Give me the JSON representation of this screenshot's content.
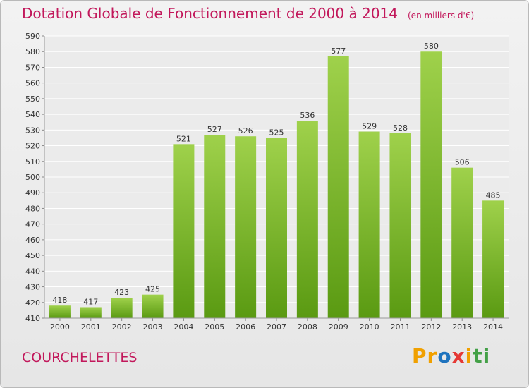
{
  "header": {
    "title": "Dotation Globale de Fonctionnement de 2000 à 2014",
    "unit": "(en milliers d'€)"
  },
  "footer": {
    "commune": "COURCHELETTES",
    "logo_letters": [
      "P",
      "r",
      "o",
      "x",
      "i",
      "t",
      "i"
    ]
  },
  "colors": {
    "title": "#c2185b",
    "bar_top": "#9fd14b",
    "bar_bottom": "#5a9a12",
    "logo": [
      "#f0a000",
      "#f0a000",
      "#1e73be",
      "#e53935",
      "#f0a000",
      "#43a047",
      "#43a047"
    ]
  },
  "chart_data": {
    "type": "bar",
    "title": "Dotation Globale de Fonctionnement de 2000 à 2014",
    "subtitle": "(en milliers d'€)",
    "xlabel": "",
    "ylabel": "",
    "categories": [
      "2000",
      "2001",
      "2002",
      "2003",
      "2004",
      "2005",
      "2006",
      "2007",
      "2008",
      "2009",
      "2010",
      "2011",
      "2012",
      "2013",
      "2014"
    ],
    "values": [
      418,
      417,
      423,
      425,
      521,
      527,
      526,
      525,
      536,
      577,
      529,
      528,
      580,
      506,
      485
    ],
    "data_labels": [
      "418",
      "417",
      "423",
      "425",
      "521",
      "527",
      "526",
      "525",
      "536",
      "577",
      "529",
      "528",
      "580",
      "506",
      "485"
    ],
    "ylim": [
      410,
      590
    ],
    "yticks": [
      410,
      420,
      430,
      440,
      450,
      460,
      470,
      480,
      490,
      500,
      510,
      520,
      530,
      540,
      550,
      560,
      570,
      580,
      590
    ],
    "grid": true
  }
}
